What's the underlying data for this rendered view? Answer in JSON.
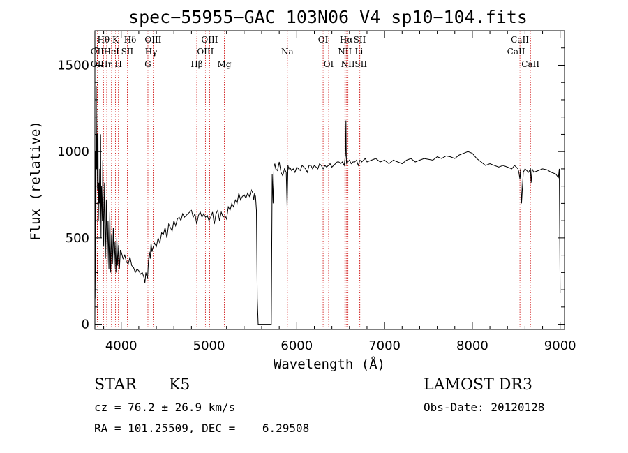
{
  "chart_data": {
    "type": "line",
    "title": "spec−55955−GAC_103N06_V4_sp10−104.fits",
    "xlabel": "Wavelength (Å)",
    "ylabel": "Flux (relative)",
    "xlim": [
      3700,
      9050
    ],
    "ylim": [
      -30,
      1700
    ],
    "xticks": [
      4000,
      5000,
      6000,
      7000,
      8000,
      9000
    ],
    "yticks": [
      0,
      500,
      1000,
      1500
    ],
    "grid": false,
    "series": [
      {
        "x": [
          3700,
          3705,
          3710,
          3715,
          3720,
          3725,
          3730,
          3735,
          3740,
          3745,
          3750,
          3755,
          3760,
          3765,
          3770,
          3775,
          3780,
          3785,
          3790,
          3800,
          3810,
          3820,
          3830,
          3840,
          3850,
          3860,
          3870,
          3880,
          3890,
          3900,
          3910,
          3920,
          3930,
          3940,
          3950,
          3960,
          3970,
          3980,
          3990,
          4000,
          4020,
          4040,
          4060,
          4080,
          4100,
          4120,
          4140,
          4160,
          4180,
          4200,
          4220,
          4240,
          4260,
          4270,
          4280,
          4290,
          4300,
          4310,
          4320,
          4330,
          4340,
          4350,
          4360,
          4380,
          4400,
          4420,
          4440,
          4460,
          4480,
          4500,
          4520,
          4540,
          4560,
          4580,
          4600,
          4620,
          4640,
          4660,
          4680,
          4700,
          4720,
          4740,
          4760,
          4780,
          4800,
          4820,
          4840,
          4860,
          4880,
          4900,
          4920,
          4940,
          4960,
          4980,
          5000,
          5020,
          5040,
          5060,
          5080,
          5100,
          5120,
          5140,
          5160,
          5180,
          5200,
          5220,
          5240,
          5260,
          5280,
          5300,
          5320,
          5340,
          5360,
          5380,
          5400,
          5420,
          5440,
          5460,
          5480,
          5500,
          5510,
          5520,
          5530,
          5540,
          5550,
          5560,
          5710,
          5720,
          5730,
          5740,
          5750,
          5760,
          5780,
          5800,
          5820,
          5840,
          5860,
          5880,
          5890,
          5900,
          5910,
          5920,
          5940,
          5960,
          5980,
          6000,
          6020,
          6040,
          6060,
          6080,
          6100,
          6120,
          6140,
          6160,
          6180,
          6200,
          6220,
          6240,
          6260,
          6280,
          6300,
          6320,
          6340,
          6360,
          6380,
          6400,
          6420,
          6440,
          6460,
          6480,
          6500,
          6520,
          6540,
          6555,
          6560,
          6563,
          6566,
          6570,
          6580,
          6600,
          6620,
          6640,
          6660,
          6680,
          6700,
          6720,
          6740,
          6760,
          6780,
          6800,
          6850,
          6900,
          6950,
          7000,
          7050,
          7100,
          7150,
          7200,
          7250,
          7300,
          7350,
          7400,
          7450,
          7500,
          7550,
          7600,
          7650,
          7700,
          7750,
          7800,
          7850,
          7900,
          7950,
          8000,
          8050,
          8100,
          8150,
          8200,
          8250,
          8300,
          8350,
          8400,
          8450,
          8480,
          8500,
          8520,
          8530,
          8542,
          8550,
          8560,
          8580,
          8600,
          8620,
          8640,
          8662,
          8670,
          8680,
          8700,
          8750,
          8800,
          8850,
          8900,
          8950,
          8980,
          8990,
          9000
        ],
        "y": [
          0,
          1000,
          150,
          1380,
          900,
          1100,
          780,
          1250,
          600,
          820,
          700,
          900,
          560,
          1100,
          500,
          800,
          700,
          600,
          950,
          450,
          820,
          380,
          720,
          350,
          600,
          320,
          650,
          300,
          520,
          350,
          560,
          320,
          480,
          300,
          500,
          340,
          460,
          320,
          430,
          420,
          380,
          400,
          360,
          350,
          390,
          340,
          330,
          300,
          320,
          310,
          290,
          300,
          270,
          240,
          300,
          280,
          270,
          360,
          420,
          380,
          470,
          420,
          440,
          470,
          450,
          500,
          470,
          530,
          520,
          560,
          500,
          580,
          560,
          540,
          600,
          570,
          610,
          620,
          600,
          640,
          620,
          630,
          640,
          650,
          660,
          620,
          640,
          580,
          630,
          650,
          620,
          640,
          620,
          630,
          600,
          620,
          650,
          580,
          640,
          660,
          600,
          650,
          620,
          630,
          610,
          680,
          660,
          700,
          680,
          720,
          700,
          760,
          720,
          740,
          750,
          730,
          760,
          740,
          780,
          760,
          720,
          760,
          740,
          660,
          150,
          0,
          0,
          870,
          700,
          910,
          930,
          900,
          890,
          940,
          880,
          860,
          900,
          880,
          680,
          920,
          900,
          910,
          890,
          900,
          880,
          910,
          900,
          890,
          920,
          910,
          900,
          880,
          920,
          920,
          900,
          920,
          910,
          900,
          930,
          920,
          900,
          920,
          910,
          920,
          930,
          910,
          920,
          930,
          940,
          940,
          930,
          940,
          920,
          980,
          1180,
          1030,
          940,
          930,
          940,
          950,
          930,
          940,
          940,
          950,
          920,
          950,
          940,
          950,
          960,
          940,
          950,
          960,
          940,
          950,
          930,
          950,
          940,
          930,
          950,
          960,
          940,
          950,
          960,
          955,
          950,
          970,
          960,
          975,
          970,
          960,
          980,
          990,
          1000,
          990,
          960,
          940,
          920,
          930,
          920,
          910,
          920,
          910,
          900,
          920,
          910,
          900,
          880,
          840,
          900,
          700,
          880,
          900,
          890,
          880,
          900,
          820,
          900,
          880,
          890,
          900,
          895,
          880,
          870,
          850,
          900,
          180
        ],
        "color": "#000000"
      }
    ],
    "spectral_lines": [
      {
        "label": "Hθ",
        "wavelength": 3798,
        "row": 0
      },
      {
        "label": "K",
        "wavelength": 3934,
        "row": 0
      },
      {
        "label": "Hδ",
        "wavelength": 4102,
        "row": 0
      },
      {
        "label": "OIII",
        "wavelength": 4363,
        "row": 0
      },
      {
        "label": "OIII",
        "wavelength": 5007,
        "row": 0
      },
      {
        "label": "OI",
        "wavelength": 6300,
        "row": 0
      },
      {
        "label": "Hα",
        "wavelength": 6563,
        "row": 0
      },
      {
        "label": "SII",
        "wavelength": 6717,
        "row": 0
      },
      {
        "label": "CaII",
        "wavelength": 8542,
        "row": 0
      },
      {
        "label": "OII",
        "wavelength": 3727,
        "row": 1
      },
      {
        "label": "HeI",
        "wavelength": 3889,
        "row": 1
      },
      {
        "label": "SII",
        "wavelength": 4069,
        "row": 1
      },
      {
        "label": "Hγ",
        "wavelength": 4340,
        "row": 1
      },
      {
        "label": "OIII",
        "wavelength": 4959,
        "row": 1
      },
      {
        "label": "Na",
        "wavelength": 5893,
        "row": 1
      },
      {
        "label": "NII",
        "wavelength": 6548,
        "row": 1
      },
      {
        "label": "Li",
        "wavelength": 6708,
        "row": 1
      },
      {
        "label": "CaII",
        "wavelength": 8498,
        "row": 1
      },
      {
        "label": "OII",
        "wavelength": 3729,
        "row": 2
      },
      {
        "label": "Hη",
        "wavelength": 3835,
        "row": 2
      },
      {
        "label": "H",
        "wavelength": 3968,
        "row": 2
      },
      {
        "label": "G",
        "wavelength": 4304,
        "row": 2
      },
      {
        "label": "Hβ",
        "wavelength": 4861,
        "row": 2
      },
      {
        "label": "Mg",
        "wavelength": 5175,
        "row": 2
      },
      {
        "label": "OI",
        "wavelength": 6363,
        "row": 2
      },
      {
        "label": "NII",
        "wavelength": 6583,
        "row": 2
      },
      {
        "label": "SII",
        "wavelength": 6731,
        "row": 2
      },
      {
        "label": "CaII",
        "wavelength": 8662,
        "row": 2
      }
    ]
  },
  "info": {
    "class": "STAR",
    "subclass": "K5",
    "survey": "LAMOST DR3",
    "redshift": "cz = 76.2 ± 26.9 km/s",
    "obs_date": "Obs-Date: 20120128",
    "coords": "RA = 101.25509, DEC =    6.29508"
  },
  "colors": {
    "spectrum": "#000000",
    "line_markers": "#cc0000"
  }
}
